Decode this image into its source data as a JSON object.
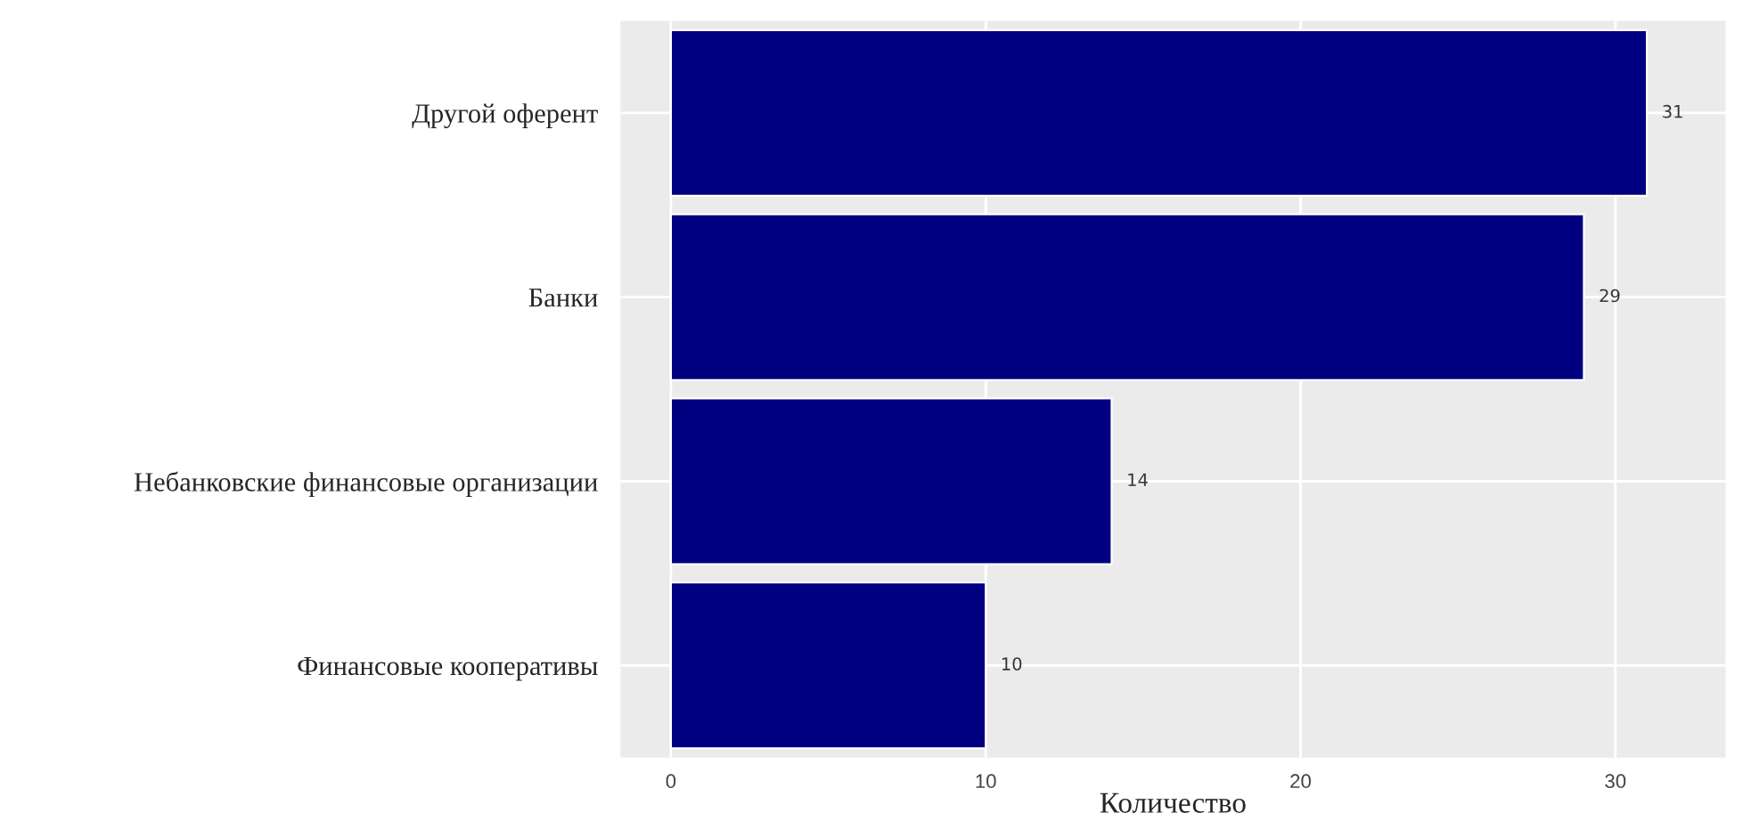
{
  "chart_data": {
    "type": "bar",
    "orientation": "horizontal",
    "xlabel": "Количество",
    "categories": [
      "Другой оферент",
      "Банки",
      "Небанковские финансовые организации",
      "Финансовые кооперативы"
    ],
    "values": [
      31,
      29,
      14,
      10
    ],
    "color": "#000080",
    "xlim": [
      -1.6,
      33.5
    ],
    "xticks": [
      0,
      10,
      20,
      30
    ],
    "grid": true,
    "data_labels": true
  }
}
